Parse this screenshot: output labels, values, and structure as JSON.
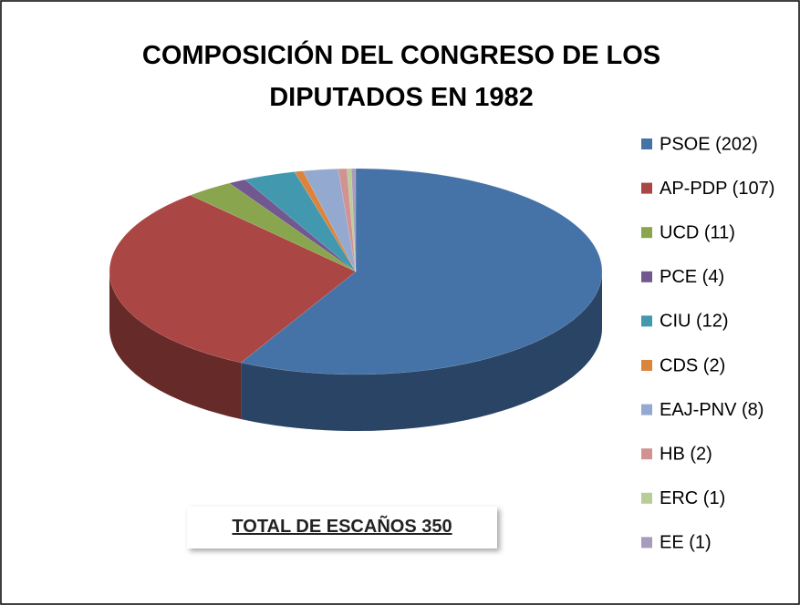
{
  "chart_data": {
    "type": "pie",
    "title": "COMPOSICIÓN DEL CONGRESO DE LOS DIPUTADOS EN 1982",
    "categories": [
      "PSOE (202)",
      "AP-PDP (107)",
      "UCD (11)",
      "PCE (4)",
      "CIU (12)",
      "CDS (2)",
      "EAJ-PNV (8)",
      "HB (2)",
      "ERC (1)",
      "EE (1)"
    ],
    "values": [
      202,
      107,
      11,
      4,
      12,
      2,
      8,
      2,
      1,
      1
    ],
    "colors": [
      "#4572a7",
      "#aa4643",
      "#89a54e",
      "#71588f",
      "#4198af",
      "#db843d",
      "#93a9cf",
      "#d19392",
      "#b9cd96",
      "#a99bbd"
    ],
    "legend": "right",
    "annotation": "TOTAL DE ESCAÑOS 350"
  }
}
